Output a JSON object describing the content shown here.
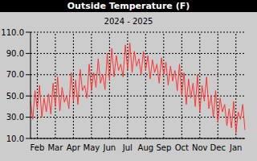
{
  "chart_data": {
    "type": "line",
    "title": "Outside Temperature (F)",
    "subtitle": "2024 - 2025",
    "categories": [
      null,
      null,
      null,
      "Feb",
      null,
      null,
      null,
      null,
      null,
      null,
      null,
      "Mar",
      null,
      null,
      null,
      null,
      null,
      null,
      null,
      "Apr",
      null,
      null,
      null,
      null,
      null,
      null,
      null,
      "May",
      null,
      null,
      null,
      null,
      null,
      null,
      null,
      "Jun",
      null,
      null,
      null,
      null,
      null,
      null,
      null,
      "Jul",
      null,
      null,
      null,
      null,
      null,
      null,
      null,
      "Aug",
      null,
      null,
      null,
      null,
      null,
      null,
      null,
      "Sep",
      null,
      null,
      null,
      null,
      null,
      null,
      null,
      "Oct",
      null,
      null,
      null,
      null,
      null,
      null,
      null,
      "Nov",
      null,
      null,
      null,
      null,
      null,
      null,
      null,
      "Dec",
      null,
      null,
      null,
      null,
      null,
      null,
      null,
      "Jan",
      null,
      null,
      null,
      null
    ],
    "values": [
      45,
      28,
      55,
      38,
      60,
      30,
      48,
      35,
      52,
      33,
      62,
      40,
      68,
      36,
      58,
      44,
      50,
      38,
      72,
      45,
      65,
      42,
      75,
      55,
      60,
      48,
      80,
      55,
      72,
      58,
      85,
      62,
      70,
      56,
      90,
      65,
      95,
      68,
      88,
      74,
      80,
      68,
      98,
      75,
      100,
      72,
      92,
      78,
      85,
      70,
      92,
      74,
      88,
      66,
      84,
      72,
      80,
      62,
      86,
      70,
      82,
      60,
      78,
      64,
      74,
      55,
      80,
      50,
      72,
      42,
      66,
      48,
      62,
      40,
      70,
      35,
      60,
      45,
      68,
      38,
      50,
      30,
      55,
      25,
      48,
      35,
      42,
      22,
      38,
      20,
      45,
      15,
      35,
      28,
      42,
      18
    ],
    "color": "#ff3333",
    "ylim": [
      10,
      110
    ],
    "yticks": [
      {
        "value": 10,
        "label": "10.0"
      },
      {
        "value": 30,
        "label": "30.0"
      },
      {
        "value": 50,
        "label": "50.0"
      },
      {
        "value": 70,
        "label": "70.0"
      },
      {
        "value": 90,
        "label": "90.0"
      },
      {
        "value": 110,
        "label": "110.0"
      }
    ],
    "grid": true
  }
}
